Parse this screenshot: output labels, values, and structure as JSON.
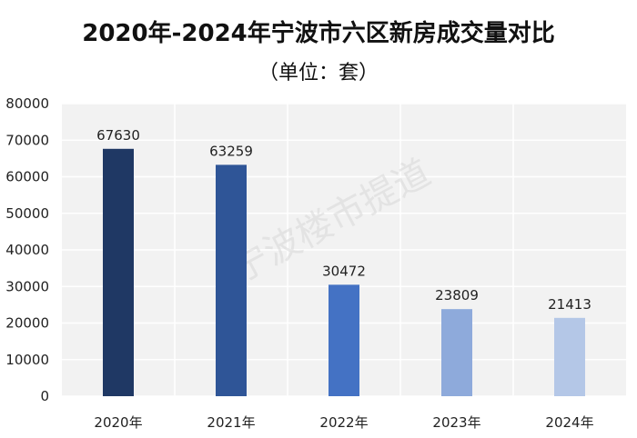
{
  "chart_data": {
    "type": "bar",
    "title": "2020年-2024年宁波市六区新房成交量对比",
    "subtitle": "（单位：套）",
    "categories": [
      "2020年",
      "2021年",
      "2022年",
      "2023年",
      "2024年"
    ],
    "values": [
      67630,
      63259,
      30472,
      23809,
      21413
    ],
    "data_labels": [
      "67630",
      "63259",
      "30472",
      "23809",
      "21413"
    ],
    "bar_colors": [
      "#1f3864",
      "#2f5597",
      "#4472c4",
      "#8eaadb",
      "#b4c7e7"
    ],
    "ylim": [
      0,
      80000
    ],
    "yticks": [
      "0",
      "10000",
      "20000",
      "30000",
      "40000",
      "50000",
      "60000",
      "70000",
      "80000"
    ],
    "grid": true,
    "watermark": "宁波楼市提道"
  }
}
